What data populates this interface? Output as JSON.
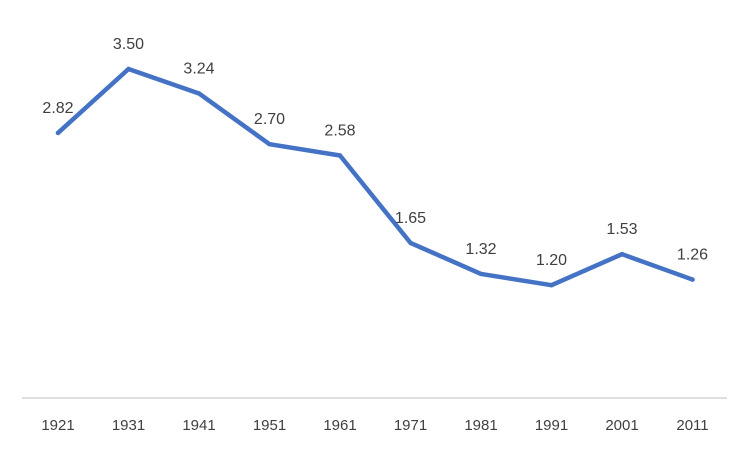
{
  "chart_data": {
    "type": "line",
    "categories": [
      "1921",
      "1931",
      "1941",
      "1951",
      "1961",
      "1971",
      "1981",
      "1991",
      "2001",
      "2011"
    ],
    "series": [
      {
        "values": [
          2.82,
          3.5,
          3.24,
          2.7,
          2.58,
          1.65,
          1.32,
          1.2,
          1.53,
          1.26
        ],
        "labels": [
          "2.82",
          "3.50",
          "3.24",
          "2.70",
          "2.58",
          "1.65",
          "1.32",
          "1.20",
          "1.53",
          "1.26"
        ],
        "color": "#4472C4"
      }
    ],
    "ylim": [
      0,
      3.6
    ],
    "grid": false,
    "legend": "none",
    "axis_color": "#BFBFBF",
    "label_color": "#404040"
  }
}
